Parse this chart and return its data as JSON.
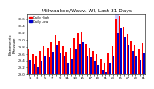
{
  "title": "Milwaukee/Wauv. WI, Last 31 Days",
  "ylabel_left": "Barometric\nPressure",
  "legend_high": "Daily High",
  "legend_low": "Daily Low",
  "bar_width": 0.42,
  "high_color": "#ff0000",
  "low_color": "#0000cc",
  "highlight_color": "#ccccff",
  "background_color": "#ffffff",
  "ylim": [
    29.0,
    30.75
  ],
  "yticks": [
    29.0,
    29.2,
    29.4,
    29.6,
    29.8,
    30.0,
    30.2,
    30.4,
    30.6
  ],
  "days": [
    1,
    2,
    3,
    4,
    5,
    6,
    7,
    8,
    9,
    10,
    11,
    12,
    13,
    14,
    15,
    16,
    17,
    18,
    19,
    20,
    21,
    22,
    23,
    24,
    25,
    26,
    27,
    28,
    29,
    30,
    31
  ],
  "high_values": [
    29.72,
    29.58,
    29.55,
    29.68,
    29.82,
    29.78,
    29.92,
    30.12,
    29.95,
    29.82,
    29.65,
    29.78,
    30.05,
    30.18,
    30.22,
    29.88,
    29.75,
    29.68,
    29.6,
    29.45,
    29.35,
    29.62,
    29.82,
    30.6,
    30.68,
    30.35,
    30.15,
    29.98,
    29.85,
    29.72,
    29.9
  ],
  "low_values": [
    29.42,
    29.28,
    29.22,
    29.38,
    29.55,
    29.48,
    29.65,
    29.85,
    29.62,
    29.52,
    29.32,
    29.45,
    29.72,
    29.88,
    29.92,
    29.55,
    29.48,
    29.38,
    29.25,
    29.1,
    29.05,
    29.32,
    29.55,
    30.18,
    30.32,
    30.08,
    29.85,
    29.68,
    29.55,
    29.42,
    29.62
  ],
  "highlight_day": 24,
  "title_fontsize": 4.2,
  "axis_fontsize": 3.2,
  "tick_fontsize": 2.8
}
